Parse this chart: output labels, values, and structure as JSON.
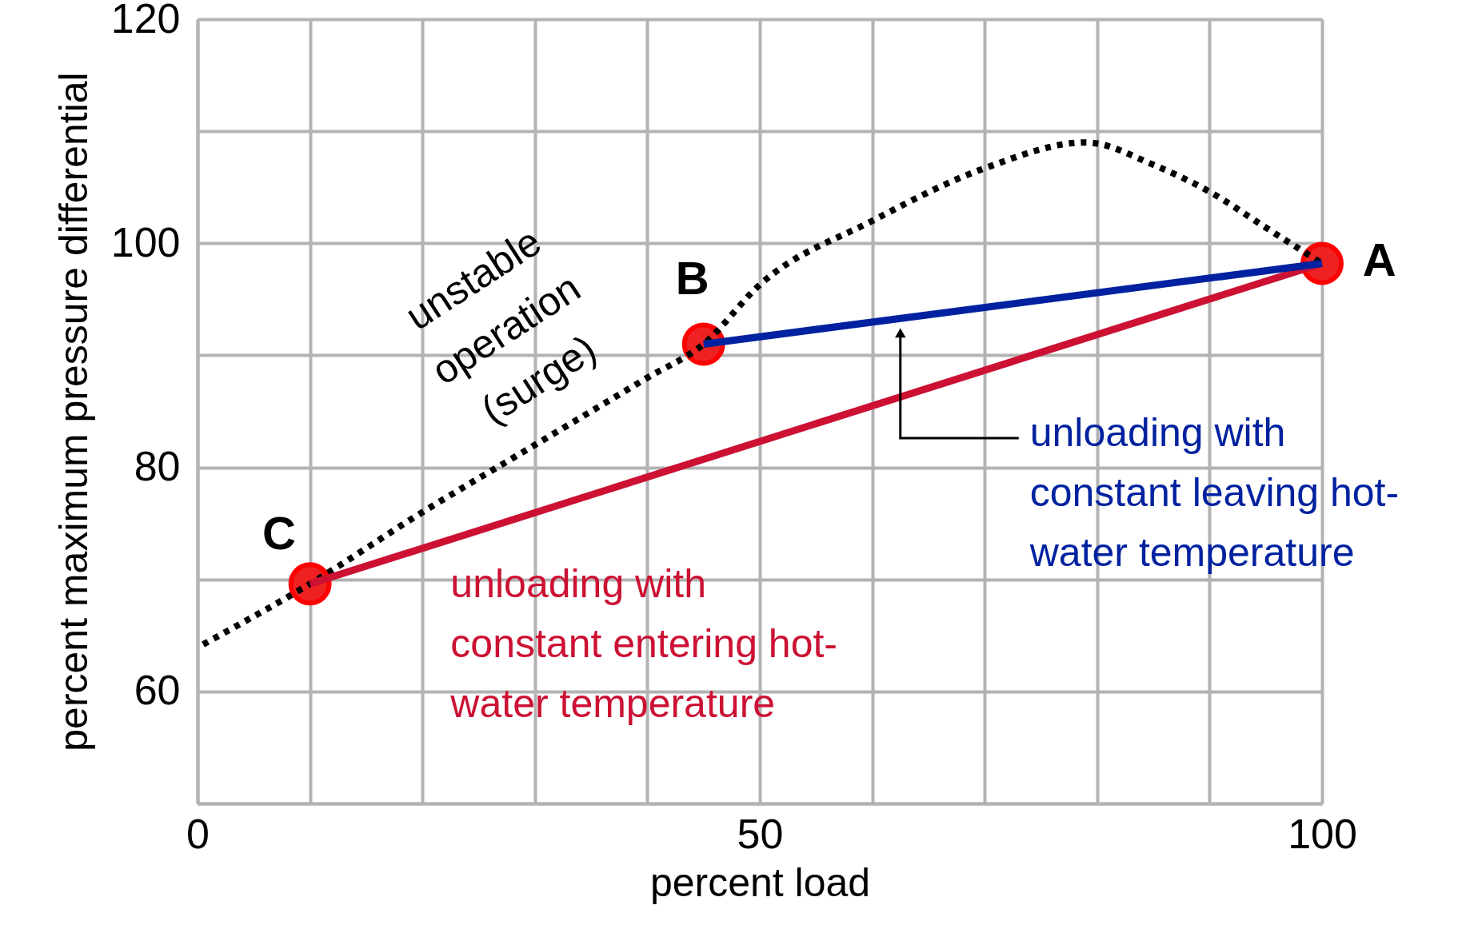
{
  "chart_data": {
    "type": "line",
    "xlabel": "percent load",
    "ylabel": "percent maximum pressure differential",
    "xlim": [
      0,
      100
    ],
    "ylim": [
      50,
      120
    ],
    "xticks": [
      0,
      {
        "value": 10,
        "label": null
      },
      {
        "value": 20,
        "label": null
      },
      {
        "value": 30,
        "label": null
      },
      {
        "value": 40,
        "label": null
      },
      50,
      {
        "value": 60,
        "label": null
      },
      {
        "value": 70,
        "label": null
      },
      {
        "value": 80,
        "label": null
      },
      {
        "value": 90,
        "label": null
      },
      100
    ],
    "yticks": [
      {
        "value": 50,
        "label": null
      },
      60,
      {
        "value": 70,
        "label": null
      },
      80,
      {
        "value": 90,
        "label": null
      },
      100,
      {
        "value": 110,
        "label": null
      },
      120
    ],
    "grid": true,
    "series": [
      {
        "color": "#000000",
        "line_style": "dotted",
        "x": [
          0.5,
          10,
          20,
          30,
          40,
          45,
          50,
          60,
          70,
          79,
          85,
          90,
          95,
          100
        ],
        "values": [
          64.2,
          69.6,
          76,
          82,
          88,
          91,
          96.3,
          102,
          106.7,
          109,
          107,
          104.6,
          101.4,
          98.2
        ]
      },
      {
        "color": "#cc1133",
        "line_style": "solid",
        "x": [
          10,
          100
        ],
        "values": [
          69.6,
          98.2
        ]
      },
      {
        "color": "#0022a0",
        "line_style": "solid",
        "x": [
          45,
          100
        ],
        "values": [
          91,
          98.2
        ]
      },
      {
        "type": "scatter",
        "color": "#ee2222",
        "marker": "circle",
        "x": [
          100,
          45,
          10
        ],
        "values": [
          98.2,
          91,
          69.6
        ]
      }
    ],
    "annotations": [
      "unstable\noperation\n(surge)",
      "A",
      "B",
      "C",
      "unloading with\nconstant entering hot-\nwater temperature",
      "unloading with\nconstant leaving hot-\nwater temperature"
    ]
  }
}
